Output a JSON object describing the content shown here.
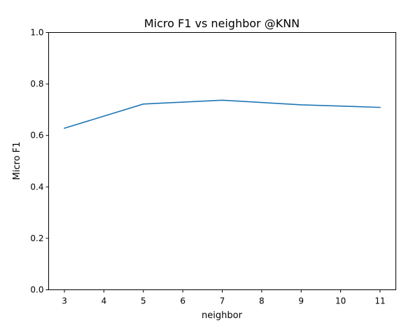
{
  "chart_data": {
    "type": "line",
    "title": "Micro F1 vs neighbor @KNN",
    "xlabel": "neighbor",
    "ylabel": "Micro F1",
    "xlim": [
      2.6,
      11.4
    ],
    "ylim": [
      0.0,
      1.0
    ],
    "xticks": [
      3,
      4,
      5,
      6,
      7,
      8,
      9,
      10,
      11
    ],
    "yticks": [
      0.0,
      0.2,
      0.4,
      0.6,
      0.8,
      1.0
    ],
    "ytick_labels": [
      "0.0",
      "0.2",
      "0.4",
      "0.6",
      "0.8",
      "1.0"
    ],
    "grid": false,
    "series": [
      {
        "color": "#1f77b4",
        "x": [
          3,
          5,
          7,
          9,
          11
        ],
        "y": [
          0.628,
          0.722,
          0.737,
          0.719,
          0.709
        ]
      }
    ]
  }
}
